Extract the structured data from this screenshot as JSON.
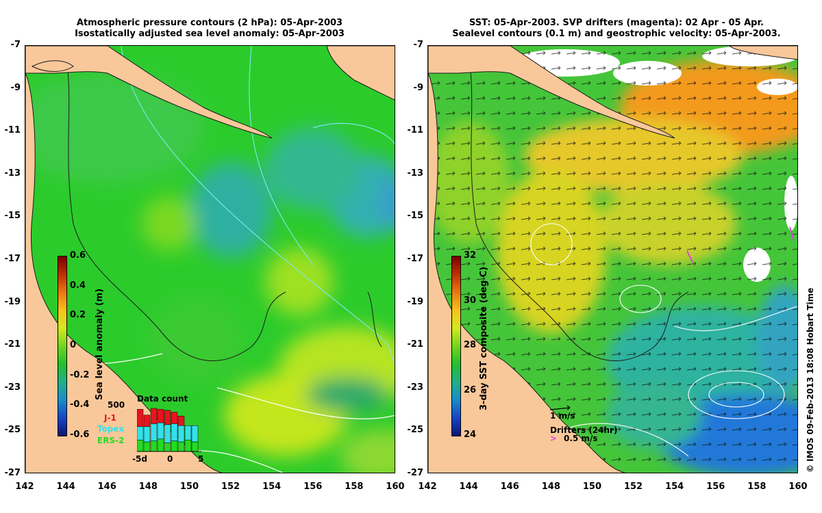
{
  "left_panel": {
    "title_line1": "Atmospheric pressure contours (2 hPa): 05-Apr-2003",
    "title_line2": "Isostatically adjusted sea level anomaly: 05-Apr-2003",
    "colorbar_label": "Sea level anomaly (m)",
    "colorbar_ticks": [
      "0.6",
      "0.4",
      "0.2",
      "0",
      "-0.2",
      "-0.4",
      "-0.6"
    ],
    "data_count": {
      "title": "Data count",
      "max_label": "500",
      "series": [
        {
          "name": "J-1",
          "color": "#e8141e"
        },
        {
          "name": "Topex",
          "color": "#34e1e9"
        },
        {
          "name": "ERS-2",
          "color": "#22dc22"
        }
      ],
      "x_ticks": [
        "-5d",
        "0",
        "5"
      ],
      "bars": [
        {
          "ers": 120,
          "topex": 140,
          "j1": 180
        },
        {
          "ers": 100,
          "topex": 160,
          "j1": 120
        },
        {
          "ers": 110,
          "topex": 180,
          "j1": 160
        },
        {
          "ers": 130,
          "topex": 170,
          "j1": 140
        },
        {
          "ers": 90,
          "topex": 190,
          "j1": 150
        },
        {
          "ers": 110,
          "topex": 180,
          "j1": 120
        },
        {
          "ers": 100,
          "topex": 170,
          "j1": 100
        },
        {
          "ers": 120,
          "topex": 150,
          "j1": 0
        },
        {
          "ers": 100,
          "topex": 170,
          "j1": 0
        }
      ]
    }
  },
  "right_panel": {
    "title_line1": "SST: 05-Apr-2003. SVP drifters (magenta): 02 Apr - 05 Apr.",
    "title_line2": "Sealevel contours (0.1 m) and geostrophic velocity: 05-Apr-2003.",
    "colorbar_label": "3-day SST composite (deg C)",
    "colorbar_ticks": [
      "32",
      "30",
      "28",
      "26",
      "24"
    ],
    "vector_scale_label": "1 m/s",
    "drifters_label": "Drifters (24hr)",
    "drifter_speed_label": "0.5 m/s",
    "drifter_color": "#e040e0"
  },
  "axes": {
    "y_ticks": [
      "-7",
      "-9",
      "-11",
      "-13",
      "-15",
      "-17",
      "-19",
      "-21",
      "-23",
      "-25",
      "-27"
    ],
    "x_ticks": [
      "142",
      "144",
      "146",
      "148",
      "150",
      "152",
      "154",
      "156",
      "158",
      "160"
    ]
  },
  "credit": "© IMOS 09-Feb-2013 18:08 Hobart Time",
  "colors": {
    "land": "#f9c89a",
    "sla_background": "#2ccb2c",
    "sst_background": "#45c53a"
  }
}
